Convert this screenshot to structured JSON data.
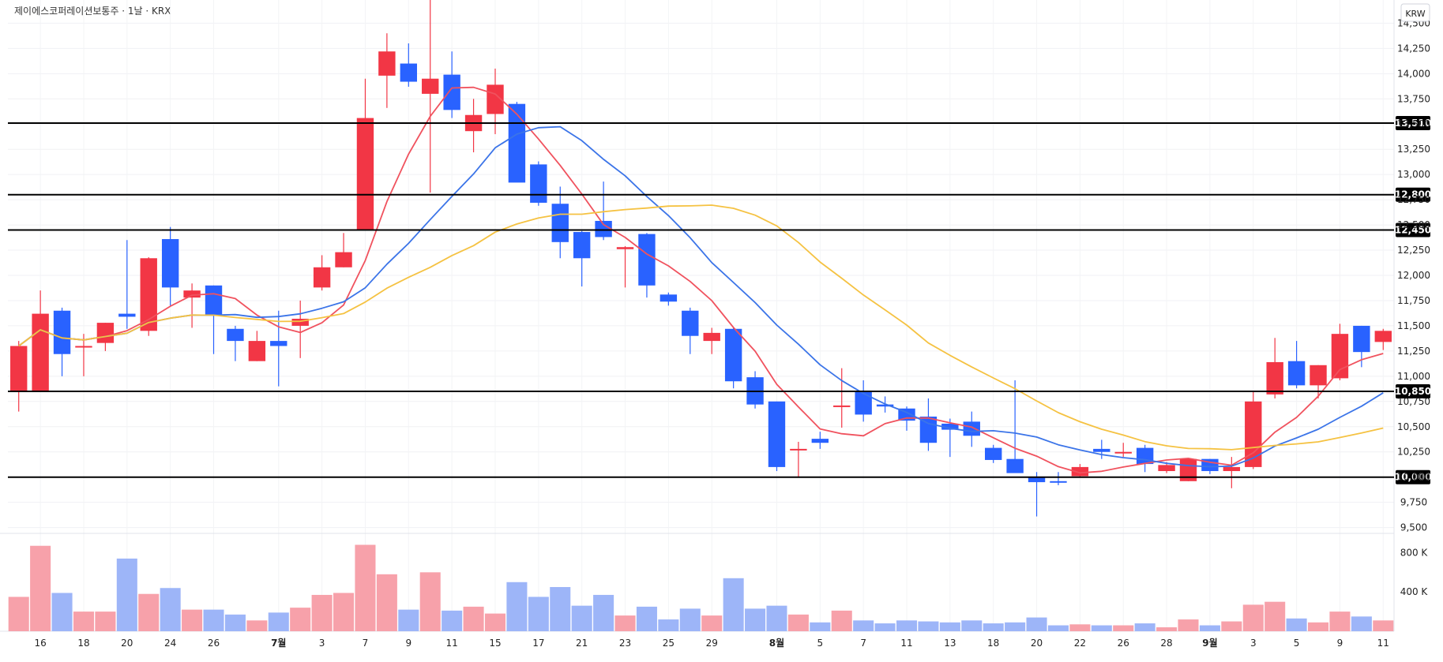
{
  "header": {
    "title": "제이에스코퍼레이션보통주 · 1날 · KRX",
    "currency": "KRW"
  },
  "colors": {
    "up": "#f23645",
    "down": "#2962ff",
    "vol_up": "#f7a1aa",
    "vol_down": "#9db5f8",
    "ma5": "#f0525e",
    "ma10": "#3b74e8",
    "ma20": "#f5c242"
  },
  "chart_data": {
    "type": "candlestick",
    "y_ticks": [
      9500,
      9750,
      10000,
      10250,
      10500,
      10750,
      11000,
      11250,
      11500,
      11750,
      12000,
      12250,
      12500,
      12750,
      13000,
      13250,
      13500,
      13750,
      14000,
      14250,
      14500
    ],
    "y_tick_labels": [
      "9,500",
      "9,750",
      "10,000",
      "10,250",
      "10,500",
      "10,750",
      "11,000",
      "11,250",
      "11,500",
      "11,750",
      "12,000",
      "12,250",
      "12,500",
      "12,750",
      "13,000",
      "13,250",
      "13,500",
      "13,750",
      "14,000",
      "14,250",
      "14,500"
    ],
    "ylim": [
      9450,
      14700
    ],
    "volume_ticks": [
      400000,
      800000
    ],
    "volume_tick_labels": [
      "400 K",
      "800 K"
    ],
    "x_labels": [
      {
        "i": 1,
        "t": "16"
      },
      {
        "i": 3,
        "t": "18"
      },
      {
        "i": 5,
        "t": "20"
      },
      {
        "i": 7,
        "t": "24"
      },
      {
        "i": 9,
        "t": "26"
      },
      {
        "i": 12,
        "t": "7월",
        "bold": true
      },
      {
        "i": 14,
        "t": "3"
      },
      {
        "i": 16,
        "t": "7"
      },
      {
        "i": 18,
        "t": "9"
      },
      {
        "i": 20,
        "t": "11"
      },
      {
        "i": 22,
        "t": "15"
      },
      {
        "i": 24,
        "t": "17"
      },
      {
        "i": 26,
        "t": "21"
      },
      {
        "i": 28,
        "t": "23"
      },
      {
        "i": 30,
        "t": "25"
      },
      {
        "i": 32,
        "t": "29"
      },
      {
        "i": 35,
        "t": "8월",
        "bold": true
      },
      {
        "i": 37,
        "t": "5"
      },
      {
        "i": 39,
        "t": "7"
      },
      {
        "i": 41,
        "t": "11"
      },
      {
        "i": 43,
        "t": "13"
      },
      {
        "i": 45,
        "t": "18"
      },
      {
        "i": 47,
        "t": "20"
      },
      {
        "i": 49,
        "t": "22"
      },
      {
        "i": 51,
        "t": "26"
      },
      {
        "i": 53,
        "t": "28"
      },
      {
        "i": 55,
        "t": "9월",
        "bold": true
      },
      {
        "i": 57,
        "t": "3"
      },
      {
        "i": 59,
        "t": "5"
      },
      {
        "i": 61,
        "t": "9"
      },
      {
        "i": 63,
        "t": "11"
      }
    ],
    "h_levels": [
      {
        "value": 13510,
        "label": "13,510"
      },
      {
        "value": 12800,
        "label": "12,800"
      },
      {
        "value": 12450,
        "label": "12,450"
      },
      {
        "value": 10850,
        "label": "10,850"
      },
      {
        "value": 10000,
        "label": "10,000"
      }
    ],
    "candles": [
      {
        "o": 10850,
        "h": 11350,
        "l": 10650,
        "c": 11300,
        "v": 350000
      },
      {
        "o": 10850,
        "h": 11850,
        "l": 10850,
        "c": 11620,
        "v": 870000
      },
      {
        "o": 11650,
        "h": 11680,
        "l": 11000,
        "c": 11220,
        "v": 390000
      },
      {
        "o": 11300,
        "h": 11420,
        "l": 11000,
        "c": 11300,
        "v": 200000
      },
      {
        "o": 11330,
        "h": 11530,
        "l": 11250,
        "c": 11530,
        "v": 200000
      },
      {
        "o": 11620,
        "h": 12350,
        "l": 11470,
        "c": 11590,
        "v": 740000
      },
      {
        "o": 11450,
        "h": 12180,
        "l": 11400,
        "c": 12170,
        "v": 380000
      },
      {
        "o": 12360,
        "h": 12480,
        "l": 11700,
        "c": 11880,
        "v": 440000
      },
      {
        "o": 11780,
        "h": 11920,
        "l": 11480,
        "c": 11850,
        "v": 220000
      },
      {
        "o": 11900,
        "h": 11900,
        "l": 11220,
        "c": 11600,
        "v": 220000
      },
      {
        "o": 11470,
        "h": 11500,
        "l": 11150,
        "c": 11350,
        "v": 170000
      },
      {
        "o": 11150,
        "h": 11450,
        "l": 11150,
        "c": 11350,
        "v": 110000
      },
      {
        "o": 11350,
        "h": 11650,
        "l": 10900,
        "c": 11300,
        "v": 190000
      },
      {
        "o": 11500,
        "h": 11750,
        "l": 11180,
        "c": 11570,
        "v": 240000
      },
      {
        "o": 11880,
        "h": 12200,
        "l": 11850,
        "c": 12080,
        "v": 370000
      },
      {
        "o": 12080,
        "h": 12420,
        "l": 12080,
        "c": 12230,
        "v": 390000
      },
      {
        "o": 12450,
        "h": 13950,
        "l": 12450,
        "c": 13560,
        "v": 880000
      },
      {
        "o": 13980,
        "h": 14400,
        "l": 13660,
        "c": 14220,
        "v": 580000
      },
      {
        "o": 14100,
        "h": 14300,
        "l": 13870,
        "c": 13920,
        "v": 220000
      },
      {
        "o": 13800,
        "h": 14730,
        "l": 12820,
        "c": 13950,
        "v": 600000
      },
      {
        "o": 13990,
        "h": 14220,
        "l": 13560,
        "c": 13640,
        "v": 210000
      },
      {
        "o": 13430,
        "h": 13750,
        "l": 13220,
        "c": 13590,
        "v": 250000
      },
      {
        "o": 13600,
        "h": 14050,
        "l": 13400,
        "c": 13890,
        "v": 180000
      },
      {
        "o": 13700,
        "h": 13720,
        "l": 12940,
        "c": 12920,
        "v": 500000
      },
      {
        "o": 13100,
        "h": 13130,
        "l": 12690,
        "c": 12720,
        "v": 350000
      },
      {
        "o": 12710,
        "h": 12880,
        "l": 12170,
        "c": 12330,
        "v": 450000
      },
      {
        "o": 12430,
        "h": 12440,
        "l": 11890,
        "c": 12170,
        "v": 260000
      },
      {
        "o": 12540,
        "h": 12930,
        "l": 12350,
        "c": 12380,
        "v": 370000
      },
      {
        "o": 12260,
        "h": 12290,
        "l": 11880,
        "c": 12280,
        "v": 160000
      },
      {
        "o": 12410,
        "h": 12420,
        "l": 11780,
        "c": 11900,
        "v": 250000
      },
      {
        "o": 11810,
        "h": 11830,
        "l": 11700,
        "c": 11740,
        "v": 120000
      },
      {
        "o": 11650,
        "h": 11680,
        "l": 11220,
        "c": 11400,
        "v": 230000
      },
      {
        "o": 11350,
        "h": 11480,
        "l": 11220,
        "c": 11430,
        "v": 160000
      },
      {
        "o": 11470,
        "h": 11480,
        "l": 10880,
        "c": 10950,
        "v": 540000
      },
      {
        "o": 10990,
        "h": 11050,
        "l": 10680,
        "c": 10720,
        "v": 230000
      },
      {
        "o": 10750,
        "h": 10750,
        "l": 10060,
        "c": 10100,
        "v": 260000
      },
      {
        "o": 10270,
        "h": 10350,
        "l": 10000,
        "c": 10280,
        "v": 170000
      },
      {
        "o": 10380,
        "h": 10450,
        "l": 10280,
        "c": 10340,
        "v": 90000
      },
      {
        "o": 10700,
        "h": 11080,
        "l": 10490,
        "c": 10710,
        "v": 210000
      },
      {
        "o": 10850,
        "h": 10960,
        "l": 10550,
        "c": 10620,
        "v": 110000
      },
      {
        "o": 10720,
        "h": 10800,
        "l": 10640,
        "c": 10700,
        "v": 80000
      },
      {
        "o": 10680,
        "h": 10700,
        "l": 10460,
        "c": 10560,
        "v": 110000
      },
      {
        "o": 10600,
        "h": 10780,
        "l": 10260,
        "c": 10340,
        "v": 100000
      },
      {
        "o": 10530,
        "h": 10580,
        "l": 10200,
        "c": 10470,
        "v": 90000
      },
      {
        "o": 10550,
        "h": 10650,
        "l": 10300,
        "c": 10410,
        "v": 110000
      },
      {
        "o": 10290,
        "h": 10320,
        "l": 10140,
        "c": 10170,
        "v": 80000
      },
      {
        "o": 10180,
        "h": 10960,
        "l": 10050,
        "c": 10040,
        "v": 90000
      },
      {
        "o": 10000,
        "h": 10050,
        "l": 9610,
        "c": 9950,
        "v": 140000
      },
      {
        "o": 9960,
        "h": 10050,
        "l": 9920,
        "c": 9950,
        "v": 60000
      },
      {
        "o": 10010,
        "h": 10130,
        "l": 10000,
        "c": 10100,
        "v": 70000
      },
      {
        "o": 10280,
        "h": 10370,
        "l": 10180,
        "c": 10250,
        "v": 60000
      },
      {
        "o": 10250,
        "h": 10340,
        "l": 10200,
        "c": 10250,
        "v": 60000
      },
      {
        "o": 10290,
        "h": 10320,
        "l": 10050,
        "c": 10130,
        "v": 80000
      },
      {
        "o": 10060,
        "h": 10150,
        "l": 10040,
        "c": 10120,
        "v": 40000
      },
      {
        "o": 9960,
        "h": 10150,
        "l": 9960,
        "c": 10180,
        "v": 120000
      },
      {
        "o": 10180,
        "h": 10180,
        "l": 10030,
        "c": 10060,
        "v": 60000
      },
      {
        "o": 10060,
        "h": 10200,
        "l": 9890,
        "c": 10100,
        "v": 100000
      },
      {
        "o": 10100,
        "h": 10850,
        "l": 10080,
        "c": 10750,
        "v": 270000
      },
      {
        "o": 10820,
        "h": 11380,
        "l": 10780,
        "c": 11140,
        "v": 300000
      },
      {
        "o": 11150,
        "h": 11350,
        "l": 10880,
        "c": 10910,
        "v": 130000
      },
      {
        "o": 10910,
        "h": 11110,
        "l": 10780,
        "c": 11110,
        "v": 90000
      },
      {
        "o": 10980,
        "h": 11520,
        "l": 10960,
        "c": 11420,
        "v": 200000
      },
      {
        "o": 11500,
        "h": 11500,
        "l": 11090,
        "c": 11240,
        "v": 150000
      },
      {
        "o": 11340,
        "h": 11470,
        "l": 11260,
        "c": 11450,
        "v": 110000
      }
    ]
  }
}
